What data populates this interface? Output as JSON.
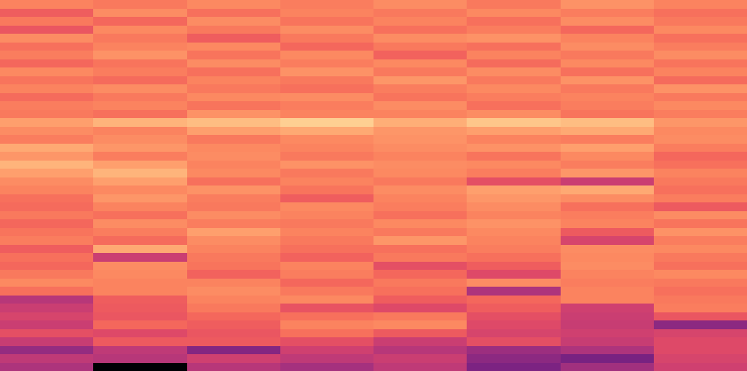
{
  "chart_data": {
    "type": "heatmap",
    "color": "magma",
    "tick_labels": false,
    "zlim": [
      0,
      100
    ],
    "cells": [
      [
        74,
        72,
        75,
        73,
        76,
        72,
        77,
        74
      ],
      [
        66,
        76,
        70,
        74,
        72,
        75,
        73,
        70
      ],
      [
        72,
        68,
        76,
        71,
        74,
        70,
        76,
        72
      ],
      [
        64,
        75,
        72,
        76,
        70,
        73,
        68,
        75
      ],
      [
        76,
        72,
        66,
        72,
        76,
        77,
        74,
        70
      ],
      [
        70,
        74,
        75,
        68,
        72,
        70,
        76,
        73
      ],
      [
        73,
        77,
        71,
        75,
        67,
        74,
        72,
        76
      ],
      [
        68,
        71,
        76,
        73,
        75,
        69,
        75,
        71
      ],
      [
        75,
        73,
        70,
        77,
        72,
        76,
        70,
        74
      ],
      [
        71,
        69,
        74,
        72,
        78,
        72,
        77,
        69
      ],
      [
        74,
        76,
        72,
        70,
        73,
        75,
        72,
        77
      ],
      [
        69,
        72,
        75,
        76,
        71,
        73,
        74,
        72
      ],
      [
        73,
        74,
        71,
        73,
        76,
        70,
        73,
        75
      ],
      [
        72,
        70,
        77,
        74,
        74,
        76,
        71,
        73
      ],
      [
        80,
        84,
        86,
        90,
        83,
        88,
        86,
        78
      ],
      [
        76,
        74,
        80,
        82,
        78,
        80,
        82,
        75
      ],
      [
        73,
        76,
        72,
        75,
        77,
        74,
        73,
        76
      ],
      [
        82,
        78,
        75,
        74,
        76,
        77,
        80,
        73
      ],
      [
        78,
        73,
        76,
        72,
        74,
        71,
        75,
        68
      ],
      [
        84,
        80,
        74,
        77,
        76,
        75,
        73,
        70
      ],
      [
        80,
        84,
        75,
        72,
        75,
        73,
        78,
        74
      ],
      [
        76,
        80,
        70,
        74,
        72,
        62,
        55,
        72
      ],
      [
        74,
        75,
        77,
        71,
        76,
        80,
        82,
        70
      ],
      [
        70,
        78,
        73,
        66,
        74,
        78,
        76,
        73
      ],
      [
        69,
        74,
        72,
        75,
        73,
        76,
        70,
        65
      ],
      [
        72,
        70,
        76,
        74,
        70,
        74,
        73,
        76
      ],
      [
        68,
        76,
        73,
        72,
        75,
        77,
        74,
        71
      ],
      [
        71,
        73,
        80,
        74,
        72,
        75,
        65,
        77
      ],
      [
        73,
        69,
        76,
        72,
        78,
        74,
        58,
        73
      ],
      [
        66,
        82,
        74,
        70,
        70,
        73,
        76,
        75
      ],
      [
        70,
        55,
        72,
        67,
        72,
        70,
        75,
        72
      ],
      [
        68,
        76,
        71,
        74,
        62,
        66,
        76,
        70
      ],
      [
        72,
        75,
        67,
        73,
        68,
        60,
        74,
        75
      ],
      [
        75,
        74,
        74,
        68,
        72,
        76,
        73,
        72
      ],
      [
        70,
        74,
        76,
        72,
        70,
        48,
        74,
        70
      ],
      [
        50,
        66,
        74,
        75,
        66,
        68,
        74,
        72
      ],
      [
        55,
        65,
        72,
        63,
        60,
        66,
        56,
        73
      ],
      [
        58,
        64,
        68,
        70,
        72,
        62,
        55,
        64
      ],
      [
        55,
        68,
        66,
        74,
        75,
        60,
        54,
        40
      ],
      [
        62,
        60,
        64,
        70,
        65,
        58,
        56,
        58
      ],
      [
        54,
        65,
        65,
        62,
        55,
        62,
        54,
        60
      ],
      [
        42,
        52,
        38,
        56,
        50,
        44,
        48,
        60
      ],
      [
        52,
        50,
        56,
        52,
        55,
        40,
        35,
        58
      ],
      [
        48,
        0,
        50,
        46,
        52,
        36,
        45,
        56
      ]
    ]
  }
}
